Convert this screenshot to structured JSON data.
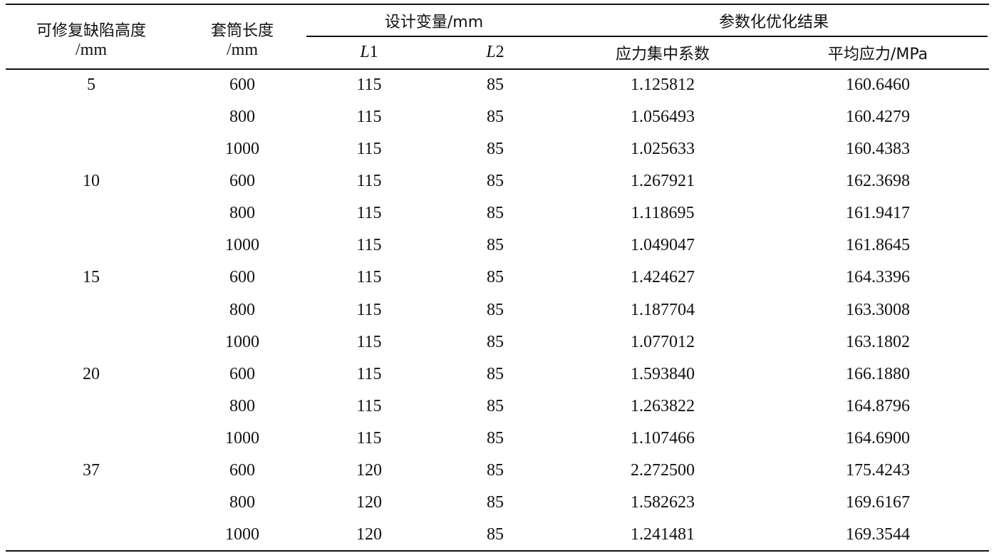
{
  "table": {
    "headers": {
      "defect_height": {
        "line1": "可修复缺陷高度",
        "line2": "/mm"
      },
      "sleeve_length": {
        "line1": "套筒长度",
        "line2": "/mm"
      },
      "design_vars": "设计变量/mm",
      "L1": {
        "var": "L",
        "num": "1"
      },
      "L2": {
        "var": "L",
        "num": "2"
      },
      "results": "参数化优化结果",
      "scf": "应力集中系数",
      "avg_stress": "平均应力/MPa"
    },
    "rows": [
      {
        "height": "5",
        "length": "600",
        "L1": "115",
        "L2": "85",
        "scf": "1.125812",
        "stress": "160.6460"
      },
      {
        "height": "",
        "length": "800",
        "L1": "115",
        "L2": "85",
        "scf": "1.056493",
        "stress": "160.4279"
      },
      {
        "height": "",
        "length": "1000",
        "L1": "115",
        "L2": "85",
        "scf": "1.025633",
        "stress": "160.4383"
      },
      {
        "height": "10",
        "length": "600",
        "L1": "115",
        "L2": "85",
        "scf": "1.267921",
        "stress": "162.3698"
      },
      {
        "height": "",
        "length": "800",
        "L1": "115",
        "L2": "85",
        "scf": "1.118695",
        "stress": "161.9417"
      },
      {
        "height": "",
        "length": "1000",
        "L1": "115",
        "L2": "85",
        "scf": "1.049047",
        "stress": "161.8645"
      },
      {
        "height": "15",
        "length": "600",
        "L1": "115",
        "L2": "85",
        "scf": "1.424627",
        "stress": "164.3396"
      },
      {
        "height": "",
        "length": "800",
        "L1": "115",
        "L2": "85",
        "scf": "1.187704",
        "stress": "163.3008"
      },
      {
        "height": "",
        "length": "1000",
        "L1": "115",
        "L2": "85",
        "scf": "1.077012",
        "stress": "163.1802"
      },
      {
        "height": "20",
        "length": "600",
        "L1": "115",
        "L2": "85",
        "scf": "1.593840",
        "stress": "166.1880"
      },
      {
        "height": "",
        "length": "800",
        "L1": "115",
        "L2": "85",
        "scf": "1.263822",
        "stress": "164.8796"
      },
      {
        "height": "",
        "length": "1000",
        "L1": "115",
        "L2": "85",
        "scf": "1.107466",
        "stress": "164.6900"
      },
      {
        "height": "37",
        "length": "600",
        "L1": "120",
        "L2": "85",
        "scf": "2.272500",
        "stress": "175.4243"
      },
      {
        "height": "",
        "length": "800",
        "L1": "120",
        "L2": "85",
        "scf": "1.582623",
        "stress": "169.6167"
      },
      {
        "height": "",
        "length": "1000",
        "L1": "120",
        "L2": "85",
        "scf": "1.241481",
        "stress": "169.3544"
      }
    ]
  }
}
